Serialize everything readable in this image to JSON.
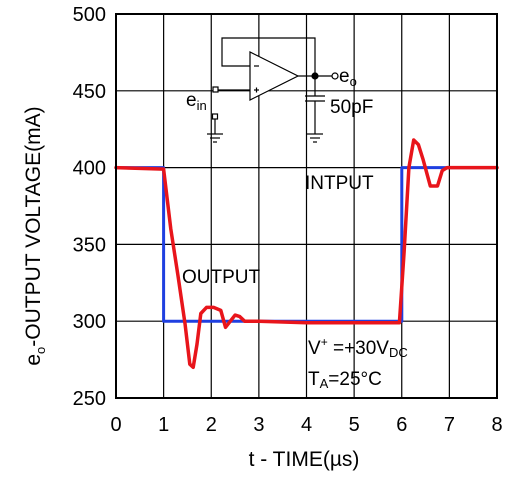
{
  "chart_data": {
    "type": "line",
    "xlabel": "t - TIME(µs)",
    "ylabel_prefix": "e",
    "ylabel_sub": "o",
    "ylabel_rest": "-OUTPUT VOLTAGE(mA)",
    "xlim": [
      0,
      8
    ],
    "ylim": [
      250,
      500
    ],
    "x_ticks": [
      "0",
      "1",
      "2",
      "3",
      "4",
      "5",
      "6",
      "7",
      "8"
    ],
    "y_ticks": [
      "250",
      "300",
      "350",
      "400",
      "450",
      "500"
    ],
    "grid": true,
    "series": [
      {
        "name": "INTPUT",
        "color": "#1f3fe0",
        "x": [
          0,
          1,
          1,
          6,
          6,
          8
        ],
        "y": [
          400,
          400,
          300,
          300,
          400,
          400
        ]
      },
      {
        "name": "OUTPUT",
        "color": "#e8151b",
        "x": [
          0,
          1.0,
          1.15,
          1.3,
          1.45,
          1.55,
          1.62,
          1.7,
          1.78,
          1.9,
          2.05,
          2.2,
          2.3,
          2.4,
          2.5,
          2.6,
          2.7,
          3.0,
          4.0,
          5.0,
          5.95,
          6.05,
          6.15,
          6.25,
          6.35,
          6.45,
          6.6,
          6.75,
          6.85,
          6.95,
          7.2,
          8.0
        ],
        "y": [
          400,
          399,
          360,
          330,
          298,
          272,
          270,
          285,
          305,
          309,
          309,
          307,
          296,
          300,
          304,
          303,
          300,
          300,
          299,
          299,
          299,
          345,
          400,
          418,
          415,
          405,
          388,
          388,
          398,
          400,
          400,
          400
        ]
      }
    ],
    "annotations": {
      "input_label": "INTPUT",
      "output_label": "OUTPUT",
      "v_label_main": "V",
      "v_label_sup": "+",
      "v_label_eq": " =+30V",
      "v_label_sub": "DC",
      "ta_main": "T",
      "ta_sub": "A",
      "ta_rest": "=25°C"
    },
    "circuit": {
      "ein_main": "e",
      "ein_sub": "in",
      "eo_main": "e",
      "eo_sub": "o",
      "cap_label": "50pF"
    }
  }
}
